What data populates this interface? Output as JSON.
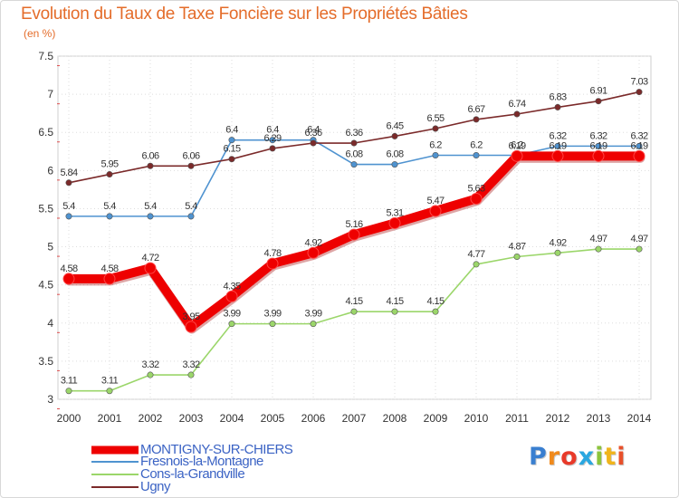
{
  "chart_data": {
    "type": "line",
    "title": "Evolution du Taux de Taxe Foncière sur les Propriétés Bâties",
    "unit": "(en %)",
    "xlabel": "",
    "ylabel": "",
    "x": [
      "2000",
      "2001",
      "2002",
      "2003",
      "2004",
      "2005",
      "2006",
      "2007",
      "2008",
      "2009",
      "2010",
      "2011",
      "2012",
      "2013",
      "2014"
    ],
    "yticks": [
      "7.5",
      "7",
      "6.5",
      "6",
      "5.5",
      "5",
      "4.5",
      "4",
      "3.5",
      "3"
    ],
    "ylim": [
      3,
      7.5
    ],
    "grid": true,
    "legend_position": "bottom-left",
    "series": [
      {
        "name": "MONTIGNY-SUR-CHIERS",
        "color": "#ee0000",
        "weight": "bold",
        "values": [
          4.58,
          4.58,
          4.72,
          3.95,
          4.35,
          4.78,
          4.92,
          5.16,
          5.31,
          5.47,
          5.63,
          6.19,
          6.19,
          6.19,
          6.19
        ],
        "labels": [
          "4.58",
          "4.58",
          "4.72",
          "3.95",
          "4.35",
          "4.78",
          "4.92",
          "5.16",
          "5.31",
          "5.47",
          "5.63",
          "6.19",
          "6.19",
          "6.19",
          "6.19"
        ]
      },
      {
        "name": "Fresnois-la-Montagne",
        "color": "#4f93d0",
        "weight": "normal",
        "values": [
          5.4,
          5.4,
          5.4,
          5.4,
          6.4,
          6.4,
          6.4,
          6.08,
          6.08,
          6.2,
          6.2,
          6.2,
          6.32,
          6.32,
          6.32
        ],
        "labels": [
          "5.4",
          "5.4",
          "5.4",
          "5.4",
          "6.4",
          "6.4",
          "6.4",
          "6.08",
          "6.08",
          "6.2",
          "6.2",
          "6.2",
          "6.32",
          "6.32",
          "6.32"
        ]
      },
      {
        "name": "Cons-la-Grandville",
        "color": "#9bd66a",
        "weight": "normal",
        "values": [
          3.11,
          3.11,
          3.32,
          3.32,
          3.99,
          3.99,
          3.99,
          4.15,
          4.15,
          4.15,
          4.77,
          4.87,
          4.92,
          4.97,
          4.97
        ],
        "labels": [
          "3.11",
          "3.11",
          "3.32",
          "3.32",
          "3.99",
          "3.99",
          "3.99",
          "4.15",
          "4.15",
          "4.15",
          "4.77",
          "4.87",
          "4.92",
          "4.97",
          "4.97"
        ]
      },
      {
        "name": "Ugny",
        "color": "#7b2a2a",
        "weight": "normal",
        "values": [
          5.84,
          5.95,
          6.06,
          6.06,
          6.15,
          6.29,
          6.36,
          6.36,
          6.45,
          6.55,
          6.67,
          6.74,
          6.83,
          6.91,
          7.03
        ],
        "labels": [
          "5.84",
          "5.95",
          "6.06",
          "6.06",
          "6.15",
          "6.29",
          "6.36",
          "6.36",
          "6.45",
          "6.55",
          "6.67",
          "6.74",
          "6.83",
          "6.91",
          "7.03"
        ]
      }
    ]
  },
  "logo": {
    "letters": [
      "P",
      "r",
      "o",
      "x",
      "i",
      "t",
      "i"
    ],
    "colors": [
      "#3a7fd0",
      "#f08a1c",
      "#e83a2a",
      "#2aa7e0",
      "#8cc43c",
      "#f0b41c",
      "#e8502a"
    ]
  }
}
